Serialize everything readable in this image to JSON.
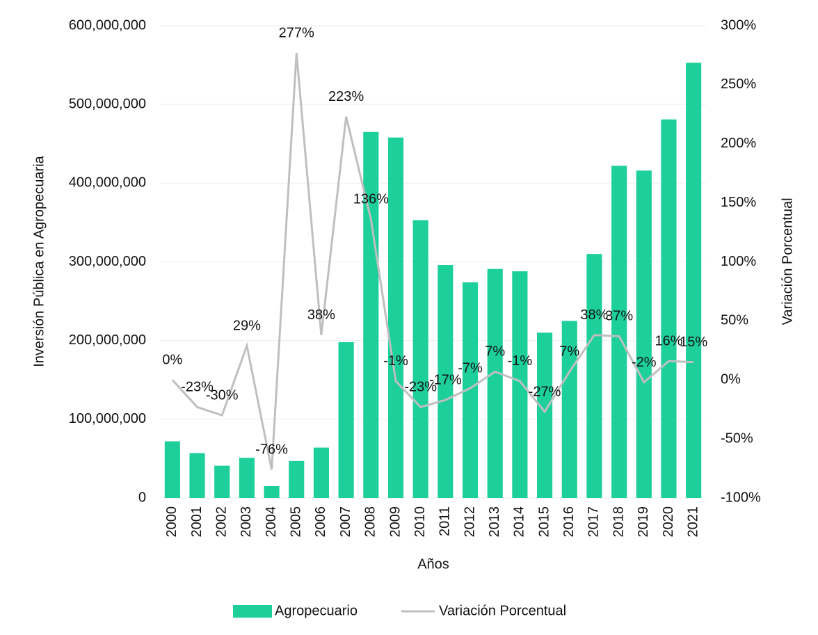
{
  "chart_data": {
    "type": "bar_line",
    "categories": [
      "2000",
      "2001",
      "2002",
      "2003",
      "2004",
      "2005",
      "2006",
      "2007",
      "2008",
      "2009",
      "2010",
      "2011",
      "2012",
      "2013",
      "2014",
      "2015",
      "2016",
      "2017",
      "2018",
      "2019",
      "2020",
      "2021"
    ],
    "xlabel": "Años",
    "ylabel": "Inversión Pública en Agropecuaria",
    "y2label": "Variación Porcentual",
    "series": [
      {
        "name": "Agropecuario",
        "type": "bar",
        "color": "#1dcf9b",
        "values": [
          72000000,
          57000000,
          41000000,
          51000000,
          15000000,
          47000000,
          64000000,
          198000000,
          465000000,
          458000000,
          353000000,
          296000000,
          274000000,
          291000000,
          288000000,
          210000000,
          225000000,
          310000000,
          422000000,
          416000000,
          481000000,
          553000000
        ]
      },
      {
        "name": "Variación Porcentual",
        "type": "line",
        "axis": "y2",
        "color": "#bfbfbf",
        "values": [
          0,
          -23,
          -30,
          29,
          -76,
          277,
          38,
          223,
          136,
          -1,
          -23,
          -17,
          -7,
          7,
          -1,
          -27,
          7,
          38,
          37,
          -2,
          16,
          15
        ],
        "value_labels": [
          "0%",
          "-23%",
          "-30%",
          "29%",
          "-76%",
          "277%",
          "38%",
          "223%",
          "136%",
          "-1%",
          "-23%",
          "-17%",
          "-7%",
          "7%",
          "-1%",
          "-27%",
          "7%",
          "38%",
          "37%",
          "-2%",
          "16%",
          "15%"
        ]
      }
    ],
    "ylim": [
      0,
      600000000
    ],
    "yticks": [
      {
        "value": 0,
        "label": "0"
      },
      {
        "value": 100000000,
        "label": "100,000,000"
      },
      {
        "value": 200000000,
        "label": "200,000,000"
      },
      {
        "value": 300000000,
        "label": "300,000,000"
      },
      {
        "value": 400000000,
        "label": "400,000,000"
      },
      {
        "value": 500000000,
        "label": "500,000,000"
      },
      {
        "value": 600000000,
        "label": "600,000,000"
      }
    ],
    "y2lim": [
      -100,
      300
    ],
    "y2ticks": [
      {
        "value": -100,
        "label": "-100%"
      },
      {
        "value": -50,
        "label": "-50%"
      },
      {
        "value": 0,
        "label": "0%"
      },
      {
        "value": 50,
        "label": "50%"
      },
      {
        "value": 100,
        "label": "100%"
      },
      {
        "value": 150,
        "label": "150%"
      },
      {
        "value": 200,
        "label": "200%"
      },
      {
        "value": 250,
        "label": "250%"
      },
      {
        "value": 300,
        "label": "300%"
      }
    ],
    "grid": true,
    "legend": "bottom"
  }
}
